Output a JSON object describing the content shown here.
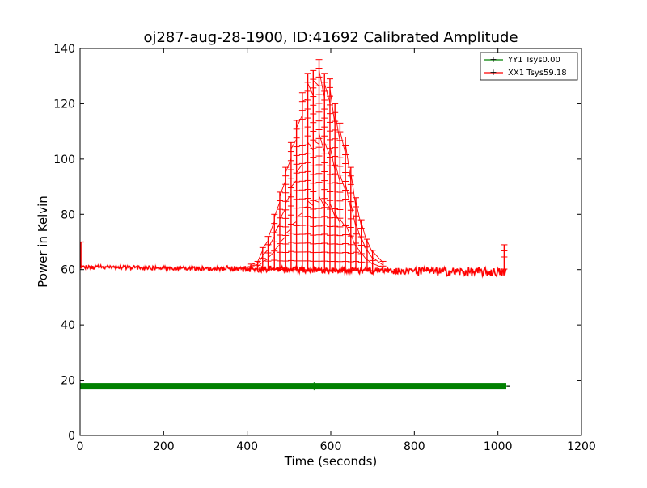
{
  "chart_data": {
    "type": "line",
    "title": "oj287-aug-28-1900, ID:41692 Calibrated Amplitude",
    "xlabel": "Time (seconds)",
    "ylabel": "Power in Kelvin",
    "xlim": [
      0,
      1200
    ],
    "ylim": [
      0,
      140
    ],
    "x_ticks": [
      0,
      200,
      400,
      600,
      800,
      1000,
      1200
    ],
    "y_ticks": [
      0,
      20,
      40,
      60,
      80,
      100,
      120,
      140
    ],
    "grid": false,
    "legend_position": "upper-right",
    "series": [
      {
        "name": "YY1 Tsys0.00",
        "color": "#008000",
        "marker": "+",
        "baseline": 17.8,
        "x_range": [
          0,
          1020
        ]
      },
      {
        "name": "XX1 Tsys59.18",
        "color": "#ff0000",
        "marker": "+",
        "baseline_start": 61,
        "baseline_end": 59,
        "x_range": [
          0,
          1020
        ],
        "start_spike": {
          "x": 2,
          "y": 70
        },
        "end_spike": {
          "x": 1015,
          "y": 69
        },
        "peaks": [
          {
            "x": 410,
            "y": 62
          },
          {
            "x": 425,
            "y": 63
          },
          {
            "x": 437,
            "y": 68
          },
          {
            "x": 450,
            "y": 72
          },
          {
            "x": 465,
            "y": 80
          },
          {
            "x": 478,
            "y": 88
          },
          {
            "x": 492,
            "y": 97
          },
          {
            "x": 505,
            "y": 106
          },
          {
            "x": 518,
            "y": 114
          },
          {
            "x": 532,
            "y": 124
          },
          {
            "x": 545,
            "y": 131
          },
          {
            "x": 558,
            "y": 132
          },
          {
            "x": 572,
            "y": 136
          },
          {
            "x": 585,
            "y": 131
          },
          {
            "x": 598,
            "y": 129
          },
          {
            "x": 610,
            "y": 120
          },
          {
            "x": 622,
            "y": 113
          },
          {
            "x": 635,
            "y": 108
          },
          {
            "x": 648,
            "y": 97
          },
          {
            "x": 660,
            "y": 86
          },
          {
            "x": 673,
            "y": 78
          },
          {
            "x": 687,
            "y": 71
          },
          {
            "x": 700,
            "y": 67
          },
          {
            "x": 725,
            "y": 63
          }
        ]
      }
    ]
  }
}
